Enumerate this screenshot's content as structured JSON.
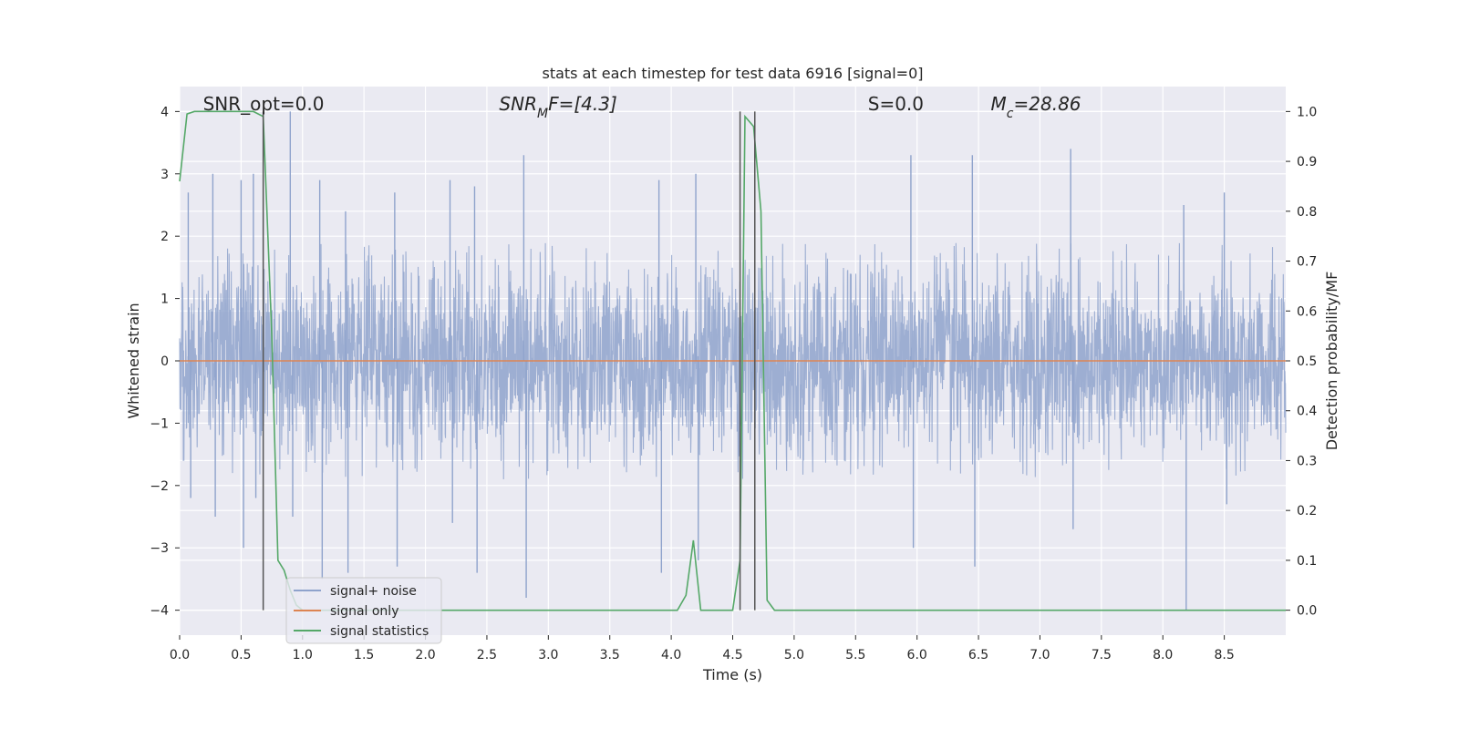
{
  "chart_data": {
    "type": "line",
    "title": "stats at each timestep for test data 6916 [signal=0]",
    "xlabel": "Time (s)",
    "ylabel_left": "Whitened strain",
    "ylabel_right": "Detection probability/MF",
    "xlim": [
      0.0,
      9.0
    ],
    "ylim_left": [
      -4.4,
      4.4
    ],
    "ylim_right": [
      -0.05,
      1.05
    ],
    "x_ticks": [
      0.0,
      0.5,
      1.0,
      1.5,
      2.0,
      2.5,
      3.0,
      3.5,
      4.0,
      4.5,
      5.0,
      5.5,
      6.0,
      6.5,
      7.0,
      7.5,
      8.0,
      8.5
    ],
    "x_tick_labels": [
      "0.0",
      "0.5",
      "1.0",
      "1.5",
      "2.0",
      "2.5",
      "3.0",
      "3.5",
      "4.0",
      "4.5",
      "5.0",
      "5.5",
      "6.0",
      "6.5",
      "7.0",
      "7.5",
      "8.0",
      "8.5"
    ],
    "y_left_ticks": [
      4,
      3,
      2,
      1,
      0,
      -1,
      -2,
      -3,
      -4
    ],
    "y_left_tick_labels": [
      "4",
      "3",
      "2",
      "1",
      "0",
      "−1",
      "−2",
      "−3",
      "−4"
    ],
    "y_right_ticks": [
      1.0,
      0.9,
      0.8,
      0.7,
      0.6,
      0.5,
      0.4,
      0.3,
      0.2,
      0.1,
      0.0
    ],
    "y_right_tick_labels": [
      "1.0",
      "0.9",
      "0.8",
      "0.7",
      "0.6",
      "0.5",
      "0.4",
      "0.3",
      "0.2",
      "0.1",
      "0.0"
    ],
    "grid": true,
    "legend_placement": "lower-left",
    "annotations": [
      {
        "text": "SNR_opt=0.0",
        "x": 0.19
      },
      {
        "text_html": "SNR<tspan font-size='14' baseline-shift='sub'>M</tspan>F=[4.3]",
        "text": "SNR_MF=[4.3]",
        "x": 2.6
      },
      {
        "text": "S=0.0",
        "x": 5.6
      },
      {
        "text_html": "M<tspan font-size='14' baseline-shift='sub'>c</tspan>=28.86",
        "text": "M_c=28.86",
        "x": 6.6
      }
    ],
    "noise_envelope": {
      "description_points": [
        {
          "x": 0.07,
          "y_max": 2.7,
          "y_min": -2.2
        },
        {
          "x": 0.27,
          "y_max": 3.0,
          "y_min": -2.5
        },
        {
          "x": 0.5,
          "y_max": 2.9,
          "y_min": -3.0
        },
        {
          "x": 0.6,
          "y_max": 3.0,
          "y_min": -2.2
        },
        {
          "x": 0.9,
          "y_max": 4.0,
          "y_min": -2.5
        },
        {
          "x": 1.14,
          "y_max": 2.9,
          "y_min": -3.5
        },
        {
          "x": 1.35,
          "y_max": 2.4,
          "y_min": -3.4
        },
        {
          "x": 1.75,
          "y_max": 2.7,
          "y_min": -3.3
        },
        {
          "x": 2.2,
          "y_max": 2.9,
          "y_min": -2.6
        },
        {
          "x": 2.4,
          "y_max": 2.8,
          "y_min": -3.4
        },
        {
          "x": 2.8,
          "y_max": 3.3,
          "y_min": -3.8
        },
        {
          "x": 3.9,
          "y_max": 2.9,
          "y_min": -3.4
        },
        {
          "x": 4.2,
          "y_max": 3.0,
          "y_min": -3.2
        },
        {
          "x": 5.95,
          "y_max": 3.3,
          "y_min": -3.0
        },
        {
          "x": 6.45,
          "y_max": 3.3,
          "y_min": -3.3
        },
        {
          "x": 7.25,
          "y_max": 3.4,
          "y_min": -2.7
        },
        {
          "x": 8.17,
          "y_max": 2.5,
          "y_min": -4.0
        },
        {
          "x": 8.5,
          "y_max": 2.7,
          "y_min": -2.3
        }
      ],
      "typical_max": 1.9,
      "typical_min": -1.9
    },
    "series": [
      {
        "name": "signal+ noise",
        "axis": "left",
        "color": "#8fa3cc",
        "seed": 6916,
        "x_range": [
          0.0,
          9.0
        ]
      },
      {
        "name": "signal only",
        "axis": "left",
        "color": "#dd8452",
        "x": [
          0.0,
          9.0
        ],
        "y": [
          0.0,
          0.0
        ]
      },
      {
        "name": "signal statistics",
        "axis": "right",
        "color": "#55a868",
        "x": [
          0.0,
          0.06,
          0.12,
          0.2,
          0.3,
          0.4,
          0.5,
          0.6,
          0.68,
          0.75,
          0.8,
          0.85,
          0.9,
          0.95,
          1.0,
          1.2,
          1.5,
          2.0,
          2.5,
          3.0,
          3.5,
          4.0,
          4.05,
          4.12,
          4.18,
          4.24,
          4.3,
          4.4,
          4.5,
          4.56,
          4.6,
          4.67,
          4.73,
          4.78,
          4.84,
          4.9,
          5.0,
          6.0,
          7.0,
          8.0,
          9.0
        ],
        "y": [
          0.86,
          0.995,
          1.0,
          1.0,
          1.0,
          1.0,
          1.0,
          1.0,
          0.99,
          0.55,
          0.1,
          0.08,
          0.04,
          0.01,
          0.0,
          0.0,
          0.0,
          0.0,
          0.0,
          0.0,
          0.0,
          0.0,
          0.0,
          0.03,
          0.14,
          0.0,
          0.0,
          0.0,
          0.0,
          0.1,
          0.99,
          0.97,
          0.8,
          0.02,
          0.0,
          0.0,
          0.0,
          0.0,
          0.0,
          0.0,
          0.0
        ]
      }
    ],
    "vertical_lines": [
      {
        "x": 0.68,
        "y_from": 4.0,
        "y_to": -4.0,
        "color": "#555555"
      },
      {
        "x": 4.56,
        "y_from": 4.0,
        "y_to": -4.0,
        "color": "#555555"
      },
      {
        "x": 4.68,
        "y_from": 4.0,
        "y_to": -4.0,
        "color": "#555555"
      }
    ]
  }
}
